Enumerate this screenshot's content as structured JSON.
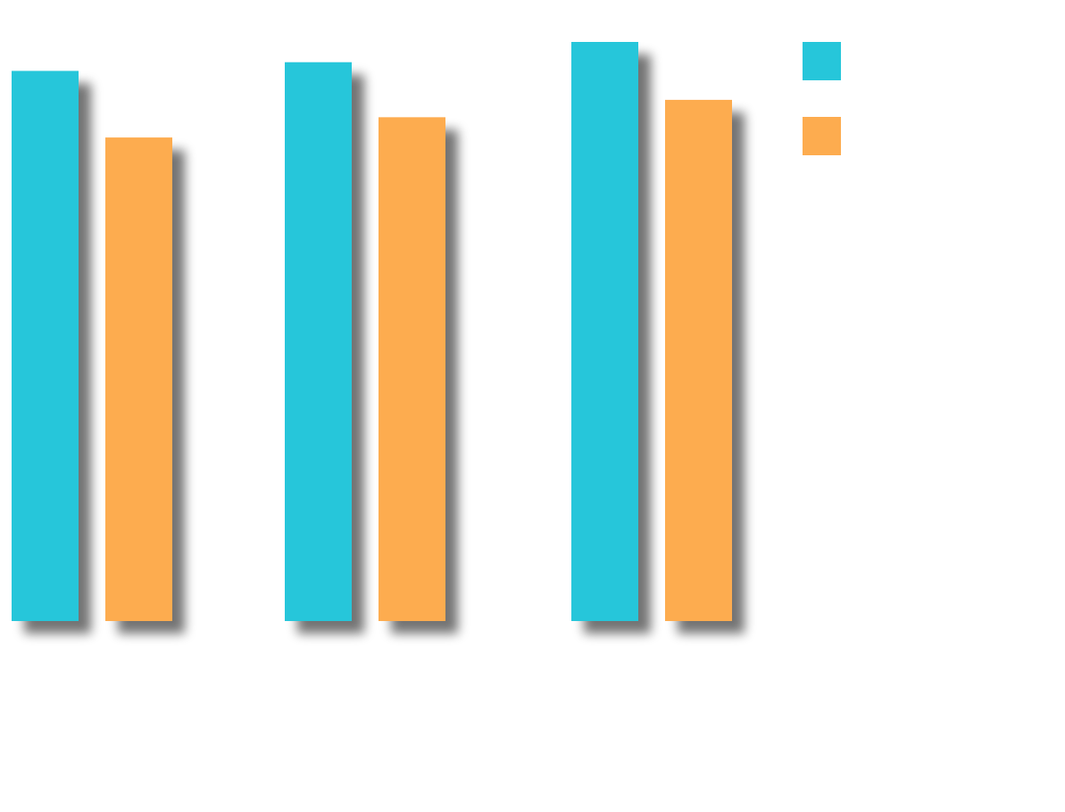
{
  "chart_data": {
    "type": "bar",
    "title": "",
    "xlabel": "",
    "ylabel": "",
    "categories": [
      "",
      "",
      ""
    ],
    "series": [
      {
        "name": "",
        "color": "#26C6DA",
        "values": [
          95,
          96.5,
          100
        ]
      },
      {
        "name": "",
        "color": "#FDAC4F",
        "values": [
          83.5,
          87,
          90
        ]
      }
    ],
    "ylim": [
      0,
      100
    ],
    "grid": false,
    "legend": "top-right",
    "bar_shadow": true
  }
}
